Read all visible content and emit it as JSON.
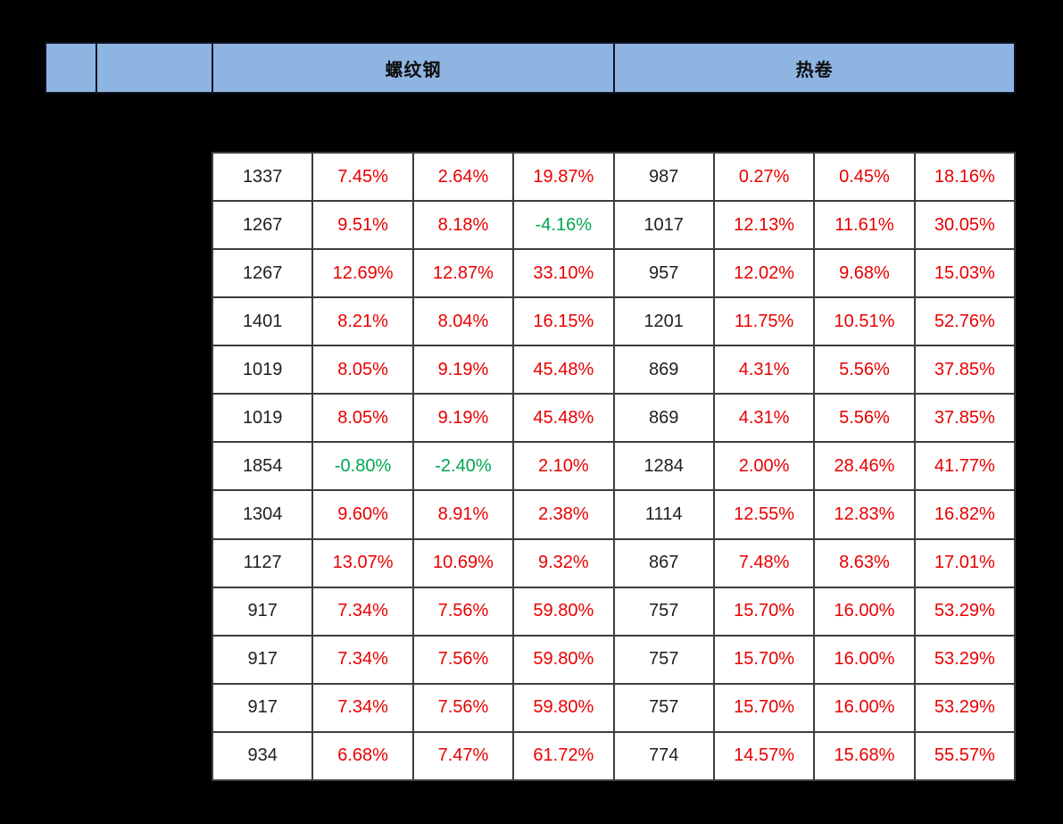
{
  "header": {
    "cells": [
      {
        "label": ""
      },
      {
        "label": ""
      },
      {
        "label": "螺纹钢"
      },
      {
        "label": "热卷"
      }
    ]
  },
  "table": {
    "group_left_title": "螺纹钢",
    "group_right_title": "热卷",
    "columns_per_group": 4,
    "rows": [
      [
        "1337",
        "7.45%",
        "2.64%",
        "19.87%",
        "987",
        "0.27%",
        "0.45%",
        "18.16%"
      ],
      [
        "1267",
        "9.51%",
        "8.18%",
        "-4.16%",
        "1017",
        "12.13%",
        "11.61%",
        "30.05%"
      ],
      [
        "1267",
        "12.69%",
        "12.87%",
        "33.10%",
        "957",
        "12.02%",
        "9.68%",
        "15.03%"
      ],
      [
        "1401",
        "8.21%",
        "8.04%",
        "16.15%",
        "1201",
        "11.75%",
        "10.51%",
        "52.76%"
      ],
      [
        "1019",
        "8.05%",
        "9.19%",
        "45.48%",
        "869",
        "4.31%",
        "5.56%",
        "37.85%"
      ],
      [
        "1019",
        "8.05%",
        "9.19%",
        "45.48%",
        "869",
        "4.31%",
        "5.56%",
        "37.85%"
      ],
      [
        "1854",
        "-0.80%",
        "-2.40%",
        "2.10%",
        "1284",
        "2.00%",
        "28.46%",
        "41.77%"
      ],
      [
        "1304",
        "9.60%",
        "8.91%",
        "2.38%",
        "1114",
        "12.55%",
        "12.83%",
        "16.82%"
      ],
      [
        "1127",
        "13.07%",
        "10.69%",
        "9.32%",
        "867",
        "7.48%",
        "8.63%",
        "17.01%"
      ],
      [
        "917",
        "7.34%",
        "7.56%",
        "59.80%",
        "757",
        "15.70%",
        "16.00%",
        "53.29%"
      ],
      [
        "917",
        "7.34%",
        "7.56%",
        "59.80%",
        "757",
        "15.70%",
        "16.00%",
        "53.29%"
      ],
      [
        "917",
        "7.34%",
        "7.56%",
        "59.80%",
        "757",
        "15.70%",
        "16.00%",
        "53.29%"
      ],
      [
        "934",
        "6.68%",
        "7.47%",
        "61.72%",
        "774",
        "14.57%",
        "15.68%",
        "55.57%"
      ]
    ]
  },
  "colors": {
    "background": "#000000",
    "header_fill": "#8eb4e2",
    "positive_text": "#e80000",
    "negative_text": "#00a651",
    "neutral_text": "#1f1f1f"
  }
}
